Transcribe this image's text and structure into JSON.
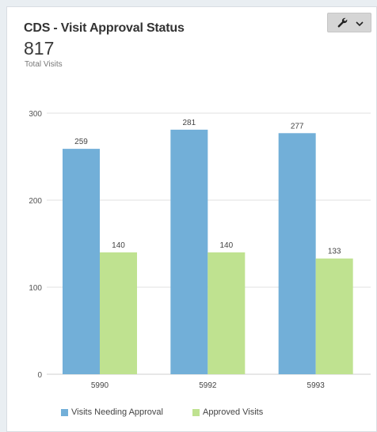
{
  "widget": {
    "title": "CDS - Visit Approval Status",
    "total_value": "817",
    "total_label": "Total Visits",
    "tool_icon": "wrench-icon",
    "dropdown_icon": "chevron-down-icon"
  },
  "colors": {
    "series_0": "#72afd8",
    "series_1": "#bfe290",
    "gridline": "#e0e0e0",
    "axis_text": "#555555"
  },
  "chart_data": {
    "type": "bar",
    "categories": [
      "5990",
      "5992",
      "5993"
    ],
    "series": [
      {
        "name": "Visits Needing Approval",
        "values": [
          259,
          281,
          277
        ]
      },
      {
        "name": "Approved Visits",
        "values": [
          140,
          140,
          133
        ]
      }
    ],
    "yticks": [
      "0",
      "100",
      "200",
      "300"
    ],
    "ylim": [
      0,
      300
    ],
    "grid": true,
    "data_labels": true,
    "legend_position": "bottom-left"
  }
}
